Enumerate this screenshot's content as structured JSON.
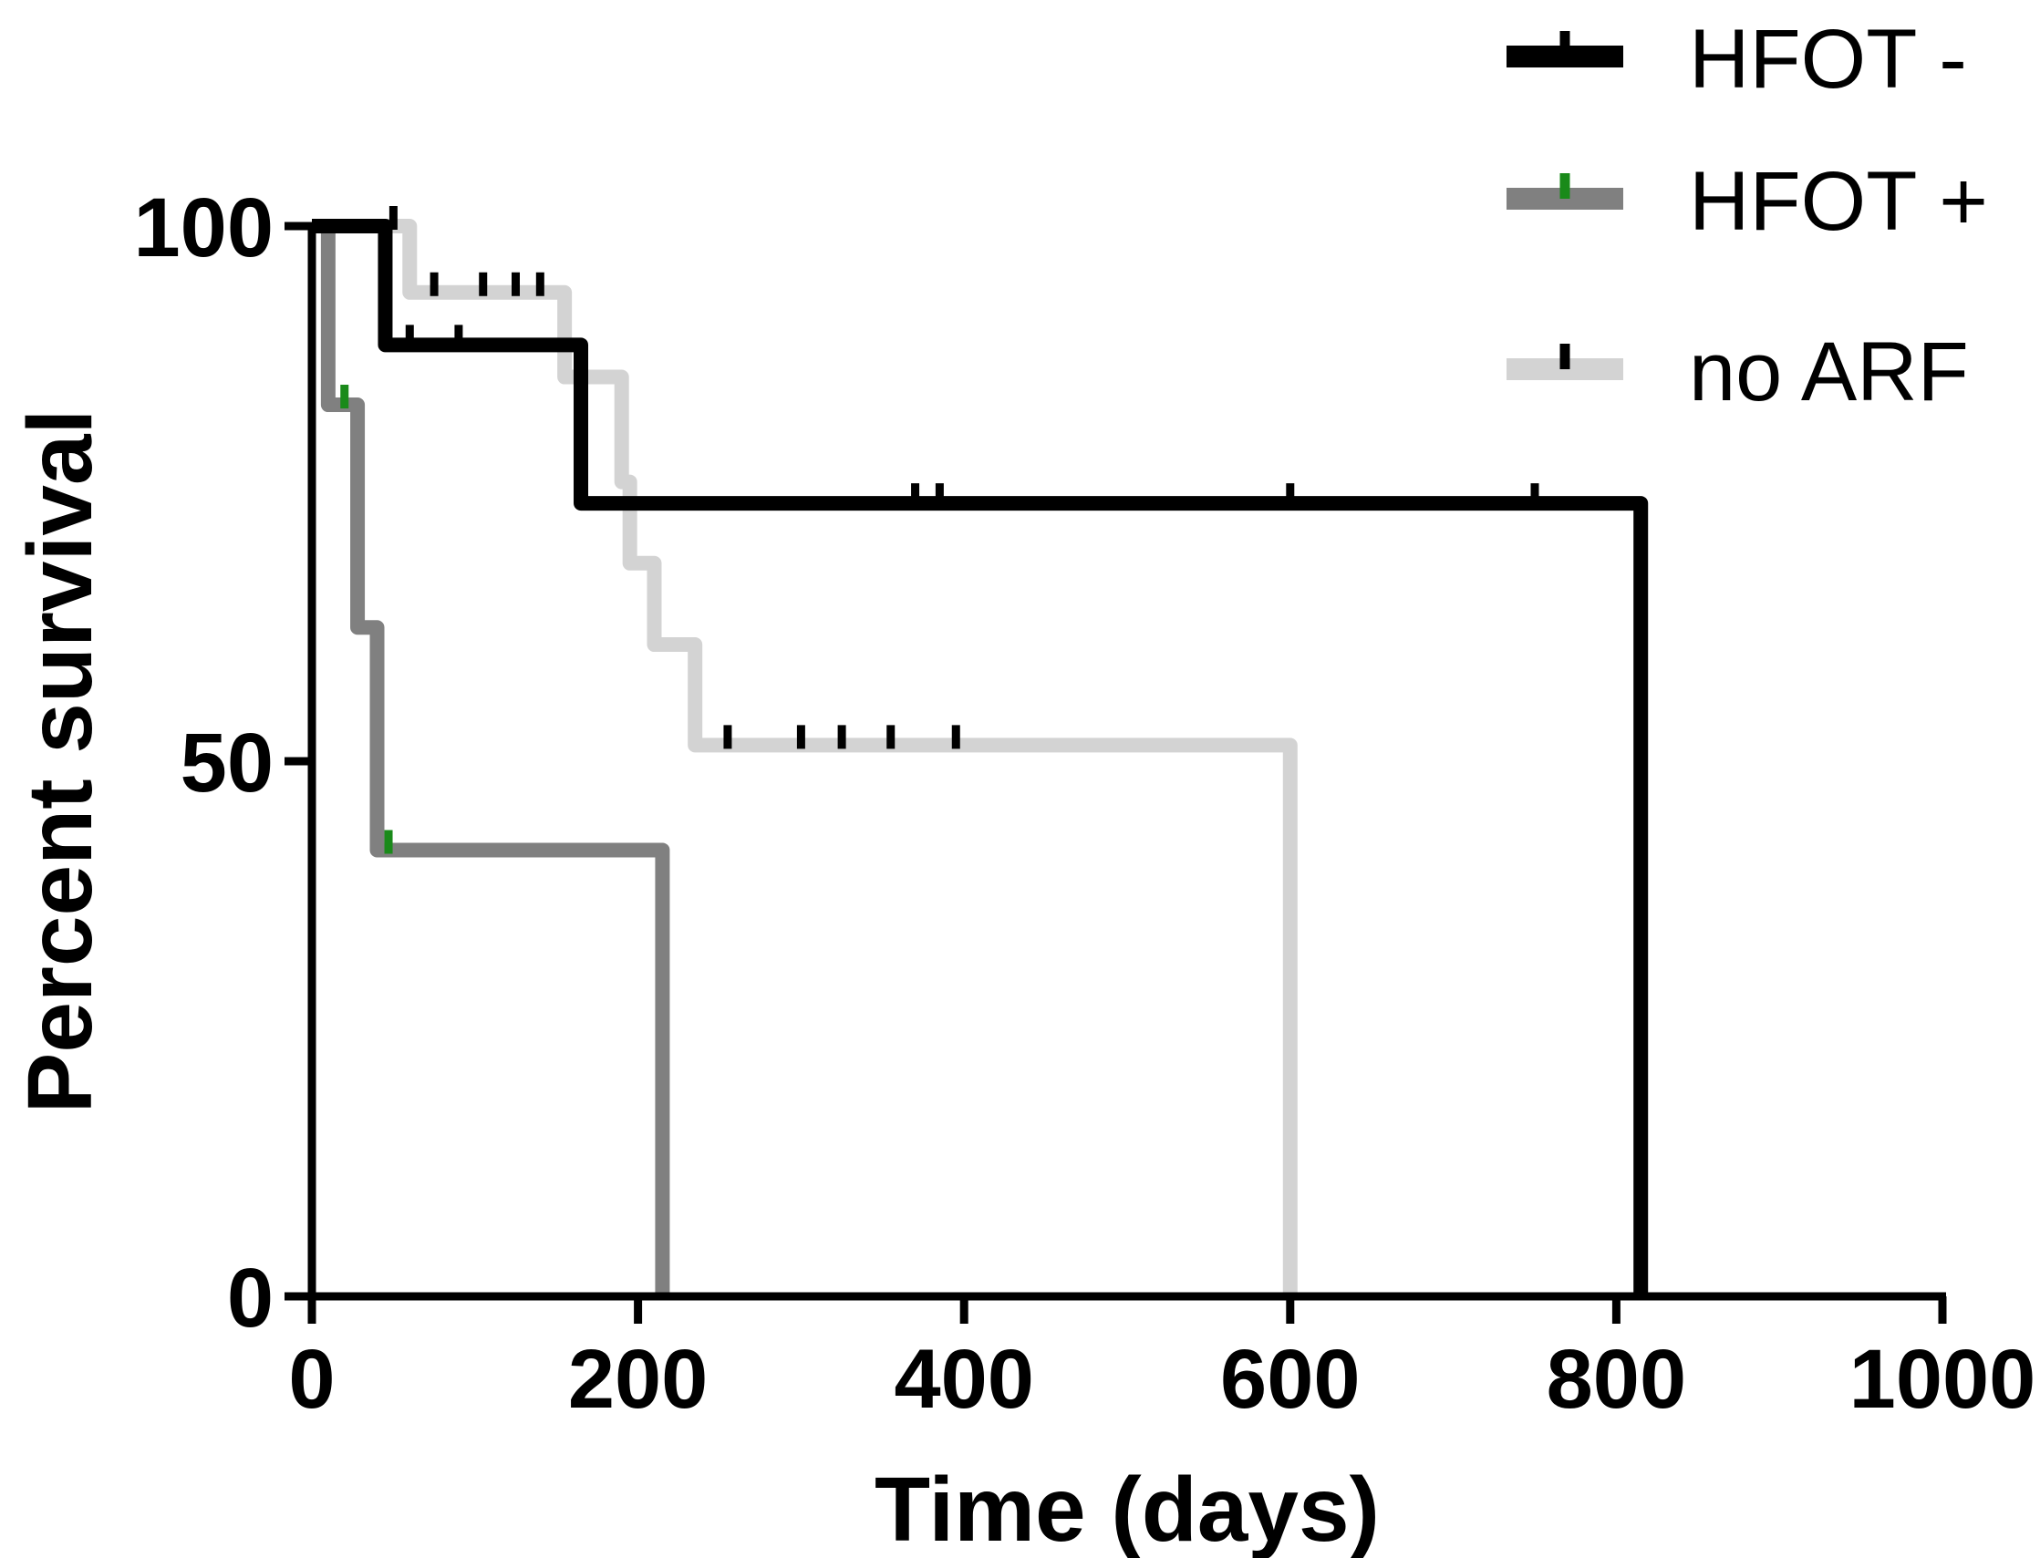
{
  "chart_data": {
    "type": "line",
    "subtype": "kaplan-meier",
    "title": "",
    "xlabel": "Time (days)",
    "ylabel": "Percent survival",
    "xlim": [
      0,
      1000
    ],
    "ylim": [
      0,
      100
    ],
    "xticks": [
      "0",
      "200",
      "400",
      "600",
      "800",
      "1000"
    ],
    "yticks": [
      "0",
      "50",
      "100"
    ],
    "legend_position": "top-right",
    "series": [
      {
        "name": "HFOT -",
        "color": "#000000",
        "censor_color": "#000000",
        "steps": [
          [
            0,
            100
          ],
          [
            45,
            100
          ],
          [
            45,
            88.9
          ],
          [
            165,
            88.9
          ],
          [
            165,
            74.1
          ],
          [
            815,
            74.1
          ],
          [
            815,
            0
          ]
        ],
        "censored": [
          [
            50,
            100
          ],
          [
            60,
            88.9
          ],
          [
            90,
            88.9
          ],
          [
            370,
            74.1
          ],
          [
            385,
            74.1
          ],
          [
            600,
            74.1
          ],
          [
            750,
            74.1
          ]
        ]
      },
      {
        "name": "HFOT +",
        "color": "#808080",
        "censor_color": "#1a8a1a",
        "steps": [
          [
            0,
            100
          ],
          [
            10,
            100
          ],
          [
            10,
            83.3
          ],
          [
            28,
            83.3
          ],
          [
            28,
            62.5
          ],
          [
            40,
            62.5
          ],
          [
            40,
            41.7
          ],
          [
            215,
            41.7
          ],
          [
            215,
            0
          ]
        ],
        "censored": [
          [
            20,
            83.3
          ],
          [
            47,
            41.7
          ]
        ]
      },
      {
        "name": "no ARF",
        "color": "#d3d3d3",
        "censor_color": "#000000",
        "steps": [
          [
            0,
            100
          ],
          [
            60,
            100
          ],
          [
            60,
            93.8
          ],
          [
            155,
            93.8
          ],
          [
            155,
            85.9
          ],
          [
            190,
            85.9
          ],
          [
            190,
            76.1
          ],
          [
            195,
            76.1
          ],
          [
            195,
            68.5
          ],
          [
            210,
            68.5
          ],
          [
            210,
            60.9
          ],
          [
            235,
            60.9
          ],
          [
            235,
            51.5
          ],
          [
            600,
            51.5
          ],
          [
            600,
            0
          ]
        ],
        "censored": [
          [
            75,
            93.8
          ],
          [
            105,
            93.8
          ],
          [
            125,
            93.8
          ],
          [
            140,
            93.8
          ],
          [
            255,
            51.5
          ],
          [
            300,
            51.5
          ],
          [
            325,
            51.5
          ],
          [
            355,
            51.5
          ],
          [
            395,
            51.5
          ]
        ]
      }
    ]
  }
}
